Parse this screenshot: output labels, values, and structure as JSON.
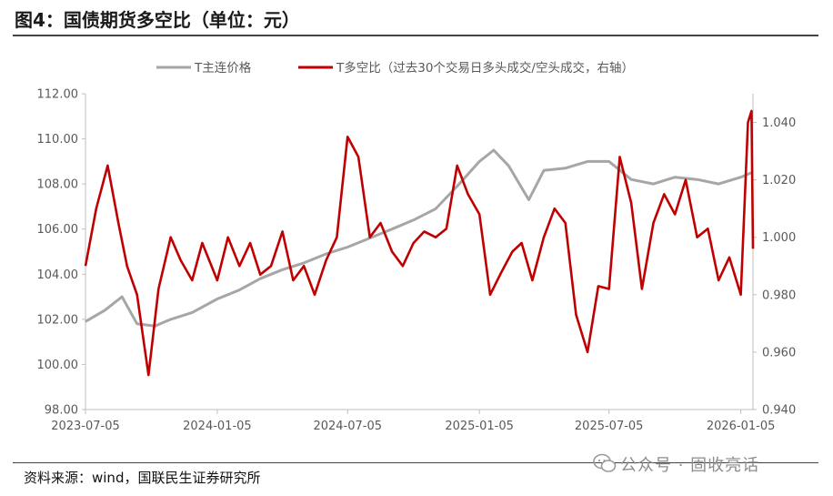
{
  "title": "图4：国债期货多空比（单位：元）",
  "source": "资料来源：wind，国联民生证券研究所",
  "watermark": "公众号 · 固收亮话",
  "colors": {
    "price": "#a6a6a6",
    "ratio": "#c00000",
    "axis": "#bfbfbf",
    "text": "#595959"
  },
  "chart_data": {
    "type": "line",
    "x_tick_labels": [
      "2023-07-05",
      "2024-01-05",
      "2024-07-05",
      "2025-01-05",
      "2025-07-05",
      "2026-01-05"
    ],
    "y_left": {
      "min": 98,
      "max": 112,
      "ticks": [
        "98.00",
        "100.00",
        "102.00",
        "104.00",
        "106.00",
        "108.00",
        "110.00",
        "112.00"
      ]
    },
    "y_right": {
      "min": 0.94,
      "max": 1.05,
      "ticks": [
        "0.940",
        "0.960",
        "0.980",
        "1.000",
        "1.020",
        "1.040"
      ]
    },
    "series": [
      {
        "name": "T主连价格",
        "axis": "left",
        "x": [
          "2023-07-05",
          "2023-08-01",
          "2023-08-25",
          "2023-09-15",
          "2023-10-10",
          "2023-11-01",
          "2023-12-01",
          "2024-01-05",
          "2024-02-05",
          "2024-03-05",
          "2024-04-05",
          "2024-05-05",
          "2024-06-05",
          "2024-07-05",
          "2024-08-05",
          "2024-09-05",
          "2024-10-05",
          "2024-11-05",
          "2024-12-05",
          "2025-01-05",
          "2025-01-25",
          "2025-02-15",
          "2025-03-15",
          "2025-04-05",
          "2025-05-05",
          "2025-06-05",
          "2025-07-05",
          "2025-08-05",
          "2025-09-05",
          "2025-10-05",
          "2025-11-05",
          "2025-12-05",
          "2026-01-05",
          "2026-01-20"
        ],
        "values": [
          101.9,
          102.4,
          103.0,
          101.8,
          101.7,
          102.0,
          102.3,
          102.9,
          103.3,
          103.8,
          104.2,
          104.5,
          104.9,
          105.2,
          105.6,
          106.0,
          106.4,
          106.9,
          107.9,
          109.0,
          109.5,
          108.8,
          107.3,
          108.6,
          108.7,
          109.0,
          109.0,
          108.2,
          108.0,
          108.3,
          108.2,
          108.0,
          108.3,
          108.5
        ]
      },
      {
        "name": "T多空比（过去30个交易日多头成交/空头成交，右轴）",
        "axis": "right",
        "x": [
          "2023-07-05",
          "2023-07-20",
          "2023-08-05",
          "2023-08-20",
          "2023-09-01",
          "2023-09-15",
          "2023-10-01",
          "2023-10-15",
          "2023-11-01",
          "2023-11-15",
          "2023-12-01",
          "2023-12-15",
          "2024-01-05",
          "2024-01-20",
          "2024-02-05",
          "2024-02-20",
          "2024-03-05",
          "2024-03-20",
          "2024-04-05",
          "2024-04-20",
          "2024-05-05",
          "2024-05-20",
          "2024-06-05",
          "2024-06-20",
          "2024-07-05",
          "2024-07-20",
          "2024-08-05",
          "2024-08-20",
          "2024-09-05",
          "2024-09-20",
          "2024-10-05",
          "2024-10-20",
          "2024-11-05",
          "2024-11-20",
          "2024-12-05",
          "2024-12-20",
          "2025-01-05",
          "2025-01-20",
          "2025-02-05",
          "2025-02-20",
          "2025-03-05",
          "2025-03-20",
          "2025-04-05",
          "2025-04-20",
          "2025-05-05",
          "2025-05-20",
          "2025-06-05",
          "2025-06-20",
          "2025-07-05",
          "2025-07-20",
          "2025-08-05",
          "2025-08-20",
          "2025-09-05",
          "2025-09-20",
          "2025-10-05",
          "2025-10-20",
          "2025-11-05",
          "2025-11-20",
          "2025-12-05",
          "2025-12-20",
          "2026-01-05",
          "2026-01-15",
          "2026-01-20",
          "2026-01-22"
        ],
        "values": [
          0.99,
          1.01,
          1.025,
          1.005,
          0.99,
          0.98,
          0.952,
          0.982,
          1.0,
          0.992,
          0.985,
          0.998,
          0.985,
          1.0,
          0.99,
          0.998,
          0.987,
          0.99,
          1.002,
          0.985,
          0.99,
          0.98,
          0.992,
          1.0,
          1.035,
          1.028,
          1.0,
          1.005,
          0.995,
          0.99,
          0.998,
          1.002,
          1.0,
          1.003,
          1.025,
          1.015,
          1.008,
          0.98,
          0.988,
          0.995,
          0.998,
          0.985,
          1.0,
          1.01,
          1.005,
          0.973,
          0.96,
          0.983,
          0.982,
          1.028,
          1.012,
          0.982,
          1.005,
          1.015,
          1.008,
          1.02,
          1.0,
          1.003,
          0.985,
          0.993,
          0.98,
          1.04,
          1.044,
          0.996
        ]
      }
    ],
    "legend_position": "top-center",
    "grid": false
  }
}
